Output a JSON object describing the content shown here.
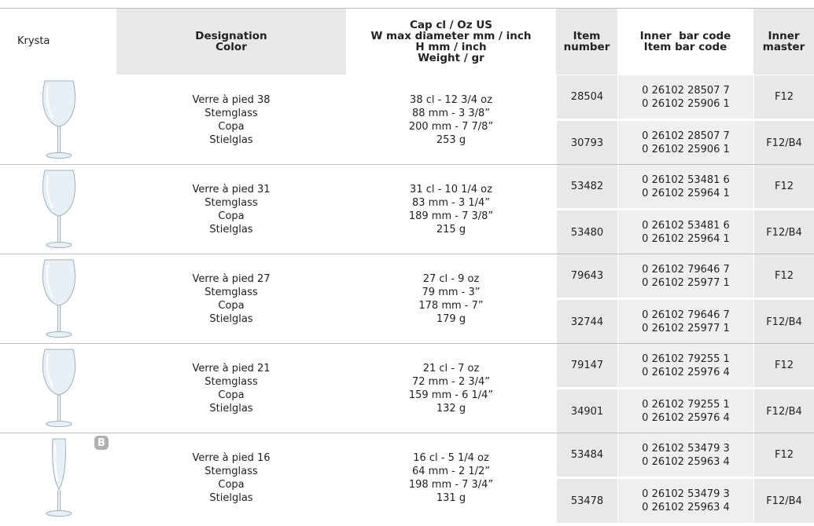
{
  "header": {
    "brand": "Krysta",
    "columns": [
      [
        "Designation",
        "Color"
      ],
      [
        "Cap cl / Oz US",
        "W max diameter mm / inch",
        "H mm / inch",
        "Weight / gr"
      ],
      [
        "Item",
        "number"
      ],
      [
        "Inner  bar code",
        "Item bar code"
      ],
      [
        "Inner",
        "master"
      ]
    ]
  },
  "rows": [
    {
      "designation": [
        "Verre à pied 38",
        "Stemglass",
        "Copa",
        "Stielglas"
      ],
      "specs": [
        "38 cl - 12 3/4 oz",
        "88 mm - 3 3/8”",
        "200 mm - 7 7/8”",
        "253 g"
      ],
      "items": [
        {
          "number": "28504",
          "barcodes": [
            "0 26102 28507 7",
            "0 26102 25906 1"
          ],
          "master": "F12"
        },
        {
          "number": "30793",
          "barcodes": [
            "0 26102 28507 7",
            "0 26102 25906 1"
          ],
          "master": "F12/B4"
        }
      ]
    },
    {
      "designation": [
        "Verre à pied 31",
        "Stemglass",
        "Copa",
        "Stielglas"
      ],
      "specs": [
        "31 cl - 10 1/4 oz",
        "83 mm - 3 1/4”",
        "189 mm - 7 3/8”",
        "215 g"
      ],
      "items": [
        {
          "number": "53482",
          "barcodes": [
            "0 26102 53481 6",
            "0 26102 25964 1"
          ],
          "master": "F12"
        },
        {
          "number": "53480",
          "barcodes": [
            "0 26102 53481 6",
            "0 26102 25964 1"
          ],
          "master": "F12/B4"
        }
      ]
    },
    {
      "designation": [
        "Verre à pied 27",
        "Stemglass",
        "Copa",
        "Stielglas"
      ],
      "specs": [
        "27 cl - 9 oz",
        "79 mm - 3”",
        "178 mm - 7”",
        "179 g"
      ],
      "items": [
        {
          "number": "79643",
          "barcodes": [
            "0 26102 79646 7",
            "0 26102 25977 1"
          ],
          "master": "F12"
        },
        {
          "number": "32744",
          "barcodes": [
            "0 26102 79646 7",
            "0 26102 25977 1"
          ],
          "master": "F12/B4"
        }
      ]
    },
    {
      "designation": [
        "Verre à pied 21",
        "Stemglass",
        "Copa",
        "Stielglas"
      ],
      "specs": [
        "21 cl - 7 oz",
        "72 mm - 2 3/4”",
        "159 mm - 6 1/4”",
        "132 g"
      ],
      "items": [
        {
          "number": "79147",
          "barcodes": [
            "0 26102 79255 1",
            "0 26102 25976 4"
          ],
          "master": "F12"
        },
        {
          "number": "34901",
          "barcodes": [
            "0 26102 79255 1",
            "0 26102 25976 4"
          ],
          "master": "F12/B4"
        }
      ]
    },
    {
      "badge": "B",
      "designation": [
        "Verre à pied 16",
        "Stemglass",
        "Copa",
        "Stielglas"
      ],
      "specs": [
        "16 cl - 5 1/4 oz",
        "64 mm - 2 1/2”",
        "198 mm - 7 3/4”",
        "131 g"
      ],
      "items": [
        {
          "number": "53484",
          "barcodes": [
            "0 26102 53479 3",
            "0 26102 25963 4"
          ],
          "master": "F12"
        },
        {
          "number": "53478",
          "barcodes": [
            "0 26102 53479 3",
            "0 26102 25963 4"
          ],
          "master": "F12/B4"
        }
      ]
    }
  ]
}
